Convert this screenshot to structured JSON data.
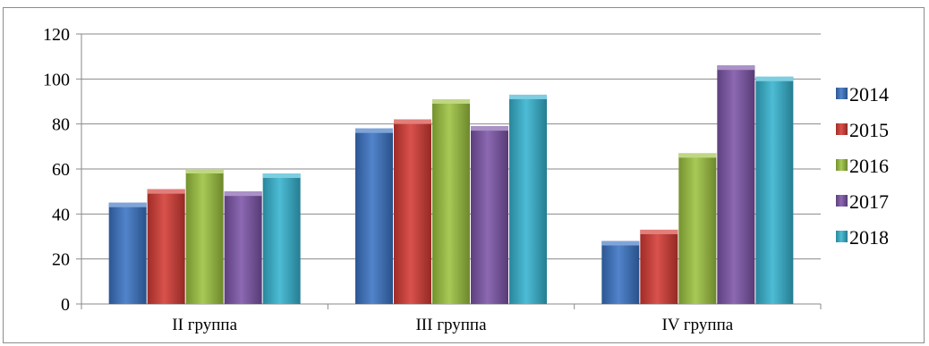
{
  "chart_data": {
    "type": "bar",
    "title": "",
    "xlabel": "",
    "ylabel": "",
    "categories": [
      "II группа",
      "III группа",
      "IV группа"
    ],
    "ylim": [
      0,
      120
    ],
    "yticks": [
      0,
      20,
      40,
      60,
      80,
      100,
      120
    ],
    "grid": true,
    "legend_position": "right",
    "series": [
      {
        "name": "2014",
        "color": "#3a73c4",
        "values": [
          45,
          78,
          28
        ]
      },
      {
        "name": "2015",
        "color": "#d43a34",
        "values": [
          51,
          82,
          33
        ]
      },
      {
        "name": "2016",
        "color": "#9cc23f",
        "values": [
          60,
          91,
          67
        ]
      },
      {
        "name": "2017",
        "color": "#7c55a8",
        "values": [
          50,
          79,
          106
        ]
      },
      {
        "name": "2018",
        "color": "#35b3cf",
        "values": [
          58,
          93,
          101
        ]
      }
    ]
  }
}
